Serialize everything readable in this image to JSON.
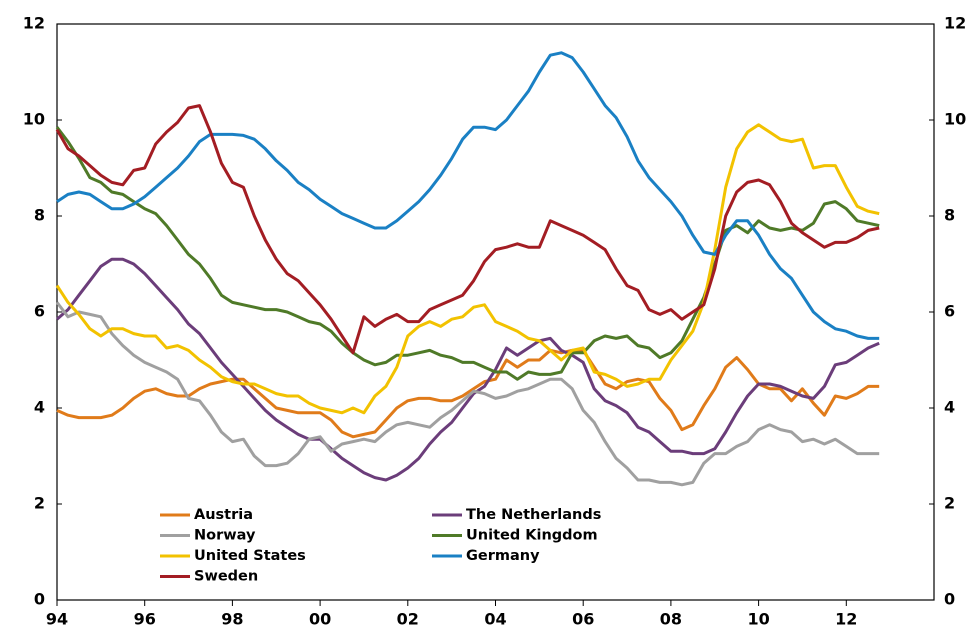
{
  "chart_data": {
    "type": "line",
    "x": [
      1994,
      1994.25,
      1994.5,
      1994.75,
      1995,
      1995.25,
      1995.5,
      1995.75,
      1996,
      1996.25,
      1996.5,
      1996.75,
      1997,
      1997.25,
      1997.5,
      1997.75,
      1998,
      1998.25,
      1998.5,
      1998.75,
      1999,
      1999.25,
      1999.5,
      1999.75,
      2000,
      2000.25,
      2000.5,
      2000.75,
      2001,
      2001.25,
      2001.5,
      2001.75,
      2002,
      2002.25,
      2002.5,
      2002.75,
      2003,
      2003.25,
      2003.5,
      2003.75,
      2004,
      2004.25,
      2004.5,
      2004.75,
      2005,
      2005.25,
      2005.5,
      2005.75,
      2006,
      2006.25,
      2006.5,
      2006.75,
      2007,
      2007.25,
      2007.5,
      2007.75,
      2008,
      2008.25,
      2008.5,
      2008.75,
      2009,
      2009.25,
      2009.5,
      2009.75,
      2010,
      2010.25,
      2010.5,
      2010.75,
      2011,
      2011.25,
      2011.5,
      2011.75,
      2012,
      2012.25,
      2012.5,
      2012.75
    ],
    "series": [
      {
        "name": "Austria",
        "color": "#e07b1a",
        "values": [
          3.95,
          3.85,
          3.8,
          3.8,
          3.8,
          3.85,
          4.0,
          4.2,
          4.35,
          4.4,
          4.3,
          4.25,
          4.25,
          4.4,
          4.5,
          4.55,
          4.6,
          4.6,
          4.4,
          4.2,
          4.0,
          3.95,
          3.9,
          3.9,
          3.9,
          3.75,
          3.5,
          3.4,
          3.45,
          3.5,
          3.75,
          4.0,
          4.15,
          4.2,
          4.2,
          4.15,
          4.15,
          4.25,
          4.4,
          4.55,
          4.6,
          5.0,
          4.85,
          5.0,
          5.0,
          5.2,
          5.15,
          5.2,
          5.2,
          4.85,
          4.5,
          4.4,
          4.55,
          4.6,
          4.55,
          4.2,
          3.95,
          3.55,
          3.65,
          4.05,
          4.4,
          4.85,
          5.05,
          4.8,
          4.5,
          4.4,
          4.4,
          4.15,
          4.4,
          4.1,
          3.85,
          4.25,
          4.2,
          4.3,
          4.45,
          4.45
        ]
      },
      {
        "name": "The Netherlands",
        "color": "#6b3d7a",
        "values": [
          5.85,
          6.05,
          6.35,
          6.65,
          6.95,
          7.1,
          7.1,
          7.0,
          6.8,
          6.55,
          6.3,
          6.05,
          5.75,
          5.55,
          5.25,
          4.95,
          4.7,
          4.45,
          4.2,
          3.95,
          3.75,
          3.6,
          3.45,
          3.35,
          3.35,
          3.15,
          2.95,
          2.8,
          2.65,
          2.55,
          2.5,
          2.6,
          2.75,
          2.95,
          3.25,
          3.5,
          3.7,
          4.0,
          4.3,
          4.45,
          4.8,
          5.25,
          5.1,
          5.25,
          5.4,
          5.45,
          5.2,
          5.1,
          4.95,
          4.4,
          4.15,
          4.05,
          3.9,
          3.6,
          3.5,
          3.3,
          3.1,
          3.1,
          3.05,
          3.05,
          3.15,
          3.5,
          3.9,
          4.25,
          4.5,
          4.5,
          4.45,
          4.35,
          4.25,
          4.2,
          4.45,
          4.9,
          4.95,
          5.1,
          5.25,
          5.35
        ]
      },
      {
        "name": "Norway",
        "color": "#a0a0a0",
        "values": [
          6.2,
          5.9,
          6.0,
          5.95,
          5.9,
          5.55,
          5.3,
          5.1,
          4.95,
          4.85,
          4.75,
          4.6,
          4.2,
          4.15,
          3.85,
          3.5,
          3.3,
          3.35,
          3.0,
          2.8,
          2.8,
          2.85,
          3.05,
          3.35,
          3.4,
          3.1,
          3.25,
          3.3,
          3.35,
          3.3,
          3.5,
          3.65,
          3.7,
          3.65,
          3.6,
          3.8,
          3.95,
          4.15,
          4.35,
          4.3,
          4.2,
          4.25,
          4.35,
          4.4,
          4.5,
          4.6,
          4.6,
          4.4,
          3.95,
          3.7,
          3.3,
          2.95,
          2.75,
          2.5,
          2.5,
          2.45,
          2.45,
          2.4,
          2.45,
          2.85,
          3.05,
          3.05,
          3.2,
          3.3,
          3.55,
          3.65,
          3.55,
          3.5,
          3.3,
          3.35,
          3.25,
          3.35,
          3.2,
          3.05,
          3.05,
          3.05
        ]
      },
      {
        "name": "United Kingdom",
        "color": "#4f7a28",
        "values": [
          9.85,
          9.55,
          9.2,
          8.8,
          8.7,
          8.5,
          8.45,
          8.3,
          8.15,
          8.05,
          7.8,
          7.5,
          7.2,
          7.0,
          6.7,
          6.35,
          6.2,
          6.15,
          6.1,
          6.05,
          6.05,
          6.0,
          5.9,
          5.8,
          5.75,
          5.6,
          5.35,
          5.15,
          5.0,
          4.9,
          4.95,
          5.1,
          5.1,
          5.15,
          5.2,
          5.1,
          5.05,
          4.95,
          4.95,
          4.85,
          4.75,
          4.75,
          4.6,
          4.75,
          4.7,
          4.7,
          4.75,
          5.15,
          5.15,
          5.4,
          5.5,
          5.45,
          5.5,
          5.3,
          5.25,
          5.05,
          5.15,
          5.4,
          5.85,
          6.3,
          7.0,
          7.7,
          7.8,
          7.65,
          7.9,
          7.75,
          7.7,
          7.75,
          7.7,
          7.85,
          8.25,
          8.3,
          8.15,
          7.9,
          7.85,
          7.8
        ]
      },
      {
        "name": "United States",
        "color": "#f2c200",
        "values": [
          6.55,
          6.2,
          5.95,
          5.65,
          5.5,
          5.65,
          5.65,
          5.55,
          5.5,
          5.5,
          5.25,
          5.3,
          5.2,
          5.0,
          4.85,
          4.65,
          4.55,
          4.5,
          4.5,
          4.4,
          4.3,
          4.25,
          4.25,
          4.1,
          4.0,
          3.95,
          3.9,
          4.0,
          3.9,
          4.25,
          4.45,
          4.85,
          5.5,
          5.7,
          5.8,
          5.7,
          5.85,
          5.9,
          6.1,
          6.15,
          5.8,
          5.7,
          5.6,
          5.45,
          5.4,
          5.2,
          5.0,
          5.2,
          5.25,
          4.75,
          4.7,
          4.6,
          4.45,
          4.5,
          4.6,
          4.6,
          5.0,
          5.3,
          5.6,
          6.2,
          7.3,
          8.6,
          9.4,
          9.75,
          9.9,
          9.75,
          9.6,
          9.55,
          9.6,
          9.0,
          9.05,
          9.05,
          8.6,
          8.2,
          8.1,
          8.05
        ]
      },
      {
        "name": "Germany",
        "color": "#1a80c4",
        "values": [
          8.3,
          8.45,
          8.5,
          8.45,
          8.3,
          8.15,
          8.15,
          8.25,
          8.4,
          8.6,
          8.8,
          9.0,
          9.25,
          9.55,
          9.7,
          9.7,
          9.7,
          9.68,
          9.6,
          9.4,
          9.15,
          8.95,
          8.7,
          8.55,
          8.35,
          8.2,
          8.05,
          7.95,
          7.85,
          7.75,
          7.75,
          7.9,
          8.1,
          8.3,
          8.55,
          8.85,
          9.2,
          9.6,
          9.85,
          9.85,
          9.8,
          10.0,
          10.3,
          10.6,
          11.0,
          11.35,
          11.4,
          11.3,
          11.0,
          10.65,
          10.3,
          10.05,
          9.65,
          9.15,
          8.8,
          8.55,
          8.3,
          8.0,
          7.6,
          7.25,
          7.2,
          7.6,
          7.9,
          7.9,
          7.6,
          7.2,
          6.9,
          6.7,
          6.35,
          6.0,
          5.8,
          5.65,
          5.6,
          5.5,
          5.45,
          5.45
        ]
      },
      {
        "name": "Sweden",
        "color": "#a31d23",
        "values": [
          9.8,
          9.4,
          9.25,
          9.05,
          8.85,
          8.7,
          8.65,
          8.95,
          9.0,
          9.5,
          9.75,
          9.95,
          10.25,
          10.3,
          9.75,
          9.1,
          8.7,
          8.6,
          8.0,
          7.5,
          7.1,
          6.8,
          6.65,
          6.4,
          6.15,
          5.85,
          5.5,
          5.15,
          5.9,
          5.7,
          5.85,
          5.95,
          5.8,
          5.8,
          6.05,
          6.15,
          6.25,
          6.35,
          6.65,
          7.05,
          7.3,
          7.35,
          7.42,
          7.35,
          7.35,
          7.9,
          7.8,
          7.7,
          7.6,
          7.45,
          7.3,
          6.9,
          6.55,
          6.45,
          6.05,
          5.95,
          6.05,
          5.85,
          6.0,
          6.15,
          6.9,
          8.0,
          8.5,
          8.7,
          8.75,
          8.65,
          8.3,
          7.85,
          7.65,
          7.5,
          7.35,
          7.45,
          7.45,
          7.55,
          7.7,
          7.75
        ]
      }
    ],
    "xlim": [
      1994,
      2014
    ],
    "xticks": [
      {
        "value": 1994,
        "label": "94"
      },
      {
        "value": 1996,
        "label": "96"
      },
      {
        "value": 1998,
        "label": "98"
      },
      {
        "value": 2000,
        "label": "00"
      },
      {
        "value": 2002,
        "label": "02"
      },
      {
        "value": 2004,
        "label": "04"
      },
      {
        "value": 2006,
        "label": "06"
      },
      {
        "value": 2008,
        "label": "08"
      },
      {
        "value": 2010,
        "label": "10"
      },
      {
        "value": 2012,
        "label": "12"
      }
    ],
    "ylim": [
      0,
      12
    ],
    "yticks": [
      0,
      2,
      4,
      6,
      8,
      10,
      12
    ],
    "y2lim": [
      0,
      12
    ],
    "y2ticks": [
      0,
      2,
      4,
      6,
      8,
      10,
      12
    ],
    "grid": false,
    "legend": "lower left"
  }
}
